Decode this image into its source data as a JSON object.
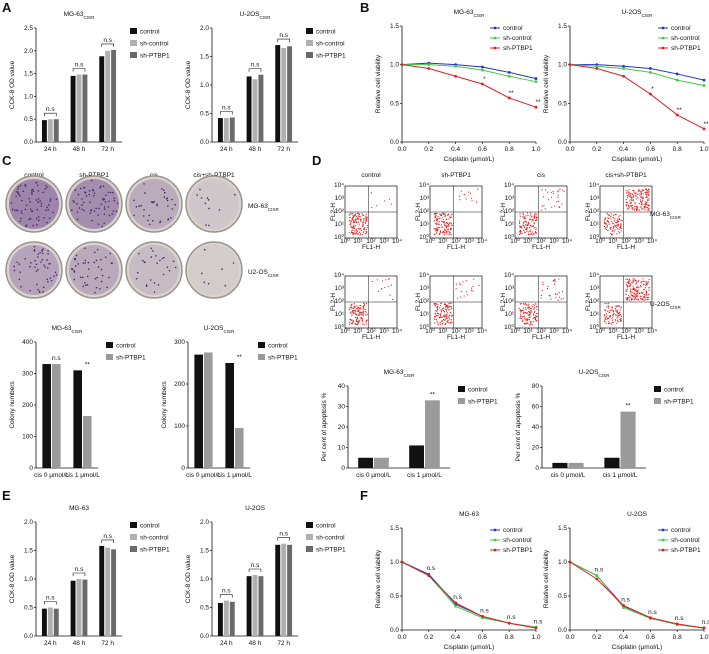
{
  "panel_letters": [
    "A",
    "B",
    "C",
    "D",
    "E",
    "F"
  ],
  "colony_images": {
    "columns": [
      "control",
      "sh-PTBP1",
      "cis",
      "cis+sh-PTBP1"
    ],
    "rows": [
      {
        "name": "MG-63",
        "sub": "CISR"
      },
      {
        "name": "U2-OS",
        "sub": "CISR"
      }
    ]
  },
  "flow_plots": {
    "columns": [
      "control",
      "sh-PTBP1",
      "cis",
      "cis+sh-PTBP1"
    ],
    "rows": [
      {
        "name": "MG-63",
        "sub": "CISR"
      },
      {
        "name": "U-2OS",
        "sub": "CISR"
      }
    ],
    "xlabel": "FL1-H",
    "ylabel": "FL2-H",
    "ticks": [
      "10⁰",
      "10¹",
      "10²",
      "10³",
      "10⁴"
    ]
  },
  "chart_data": [
    {
      "type": "bar",
      "title": "MG-63",
      "title_sub": "CISR",
      "ylabel": "CCK-8 OD value",
      "categories": [
        "24 h",
        "48 h",
        "72 h"
      ],
      "ylim": [
        0,
        2.5
      ],
      "yticks": [
        {
          "value": 0,
          "label": "0.0"
        },
        0.5,
        {
          "value": 1,
          "label": "1.0"
        },
        1.5,
        {
          "value": 2,
          "label": "2.0"
        },
        2.5
      ],
      "legend": "right",
      "brackets": true,
      "annotations": [
        "n.s",
        "n.s",
        "n.s"
      ],
      "series": [
        {
          "name": "control",
          "color": "#111111",
          "values": [
            0.48,
            1.45,
            1.88
          ]
        },
        {
          "name": "sh-control",
          "color": "#b0b0b0",
          "values": [
            0.5,
            1.48,
            2.0
          ]
        },
        {
          "name": "sh-PTBP1",
          "color": "#6a6a6a",
          "values": [
            0.5,
            1.48,
            2.02
          ]
        }
      ]
    },
    {
      "type": "bar",
      "title": "U-2OS",
      "title_sub": "CISR",
      "ylabel": "CCK-8 OD value",
      "categories": [
        "24 h",
        "48 h",
        "72 h"
      ],
      "ylim": [
        0,
        2
      ],
      "yticks": [
        {
          "value": 0,
          "label": "0.0"
        },
        0.5,
        {
          "value": 1,
          "label": "1.0"
        },
        1.5,
        {
          "value": 2,
          "label": "2.0"
        }
      ],
      "legend": "right",
      "brackets": true,
      "annotations": [
        "n.s",
        "n.s",
        "n.s"
      ],
      "series": [
        {
          "name": "control",
          "color": "#111111",
          "values": [
            0.42,
            1.15,
            1.7
          ]
        },
        {
          "name": "sh-control",
          "color": "#b0b0b0",
          "values": [
            0.42,
            1.1,
            1.65
          ]
        },
        {
          "name": "sh-PTBP1",
          "color": "#6a6a6a",
          "values": [
            0.43,
            1.18,
            1.68
          ]
        }
      ]
    },
    {
      "type": "line",
      "title": "MG-63",
      "title_sub": "CISR",
      "ylabel": "Relative cell viability",
      "xlabel": "Cisplatin (μmol/L)",
      "x": [
        0,
        0.2,
        0.4,
        0.6,
        0.8,
        1
      ],
      "xlim": [
        0,
        1
      ],
      "xticks": [
        {
          "value": 0,
          "label": "0.0"
        },
        0.2,
        0.4,
        0.6,
        0.8,
        {
          "value": 1,
          "label": "1.0"
        }
      ],
      "ylim": [
        0,
        1.5
      ],
      "yticks": [
        {
          "value": 0,
          "label": "0.0"
        },
        0.5,
        {
          "value": 1,
          "label": "1.0"
        },
        1.5
      ],
      "legend": "upper right",
      "annotations": [
        null,
        null,
        null,
        "*",
        "**",
        "**"
      ],
      "series": [
        {
          "name": "control",
          "color": "#2233cc",
          "values": [
            1,
            1.02,
            1,
            0.97,
            0.9,
            0.82
          ]
        },
        {
          "name": "sh-control",
          "color": "#44cc44",
          "values": [
            1,
            1,
            0.98,
            0.93,
            0.85,
            0.78
          ]
        },
        {
          "name": "sh-PTBP1",
          "color": "#dd2222",
          "values": [
            1,
            0.95,
            0.85,
            0.75,
            0.57,
            0.45
          ]
        }
      ]
    },
    {
      "type": "line",
      "title": "U-2OS",
      "title_sub": "CISR",
      "ylabel": "Relative cell viability",
      "xlabel": "Cisplatin (μmol/L)",
      "x": [
        0,
        0.2,
        0.4,
        0.6,
        0.8,
        1
      ],
      "xlim": [
        0,
        1
      ],
      "xticks": [
        {
          "value": 0,
          "label": "0.0"
        },
        0.2,
        0.4,
        0.6,
        0.8,
        {
          "value": 1,
          "label": "1.0"
        }
      ],
      "ylim": [
        0,
        1.5
      ],
      "yticks": [
        {
          "value": 0,
          "label": "0.0"
        },
        0.5,
        {
          "value": 1,
          "label": "1.0"
        },
        1.5
      ],
      "legend": "upper right",
      "annotations": [
        null,
        null,
        null,
        "*",
        "**",
        "**"
      ],
      "series": [
        {
          "name": "control",
          "color": "#2233cc",
          "values": [
            1,
            1,
            0.98,
            0.95,
            0.88,
            0.8
          ]
        },
        {
          "name": "sh-control",
          "color": "#44cc44",
          "values": [
            1,
            0.98,
            0.95,
            0.9,
            0.8,
            0.73
          ]
        },
        {
          "name": "sh-PTBP1",
          "color": "#dd2222",
          "values": [
            1,
            0.95,
            0.85,
            0.62,
            0.35,
            0.17
          ]
        }
      ]
    },
    {
      "type": "bar",
      "title": "MG-63",
      "title_sub": "CISR",
      "ylabel": "Colony numbers",
      "categories": [
        "cis 0 μmol/L",
        "cis 1 μmol/L"
      ],
      "ylim": [
        0,
        400
      ],
      "yticks": [
        0,
        100,
        200,
        300,
        400
      ],
      "legend": "right",
      "annotations": [
        "n.s",
        "**"
      ],
      "series": [
        {
          "name": "control",
          "color": "#111111",
          "values": [
            330,
            310
          ]
        },
        {
          "name": "sh-PTBP1",
          "color": "#9a9a9a",
          "values": [
            330,
            165
          ]
        }
      ]
    },
    {
      "type": "bar",
      "title": "U-2OS",
      "title_sub": "CISR",
      "ylabel": "Colony numbers",
      "categories": [
        "cis 0 μmol/L",
        "cis 1 μmol/L"
      ],
      "ylim": [
        0,
        300
      ],
      "yticks": [
        0,
        100,
        200,
        300
      ],
      "legend": "right",
      "annotations": [
        null,
        "**"
      ],
      "series": [
        {
          "name": "control",
          "color": "#111111",
          "values": [
            270,
            250
          ]
        },
        {
          "name": "sh-PTBP1",
          "color": "#9a9a9a",
          "values": [
            275,
            95
          ]
        }
      ]
    },
    {
      "type": "bar",
      "title": "MG-63",
      "title_sub": "CISR",
      "ylabel": "Per cent of apoptosis %",
      "categories": [
        "cis 0 μmol/L",
        "cis 1 μmol/L"
      ],
      "ylim": [
        0,
        40
      ],
      "yticks": [
        0,
        10,
        20,
        30,
        40
      ],
      "legend": "right",
      "annotations": [
        null,
        "**"
      ],
      "series": [
        {
          "name": "control",
          "color": "#111111",
          "values": [
            5,
            11
          ]
        },
        {
          "name": "sh-PTBP1",
          "color": "#9a9a9a",
          "values": [
            5,
            33
          ]
        }
      ]
    },
    {
      "type": "bar",
      "title": "U-2OS",
      "title_sub": "CISR",
      "ylabel": "Per cent of apoptosis %",
      "categories": [
        "cis 0 μmol/L",
        "cis 1 μmol/L"
      ],
      "ylim": [
        0,
        80
      ],
      "yticks": [
        0,
        20,
        40,
        60,
        80
      ],
      "legend": "right",
      "annotations": [
        null,
        "**"
      ],
      "series": [
        {
          "name": "control",
          "color": "#111111",
          "values": [
            5,
            10
          ]
        },
        {
          "name": "sh-PTBP1",
          "color": "#9a9a9a",
          "values": [
            5,
            55
          ]
        }
      ]
    },
    {
      "type": "bar",
      "title": "MG-63",
      "ylabel": "CCK-8 OD value",
      "categories": [
        "24 h",
        "48 h",
        "72 h"
      ],
      "ylim": [
        0,
        2
      ],
      "yticks": [
        {
          "value": 0,
          "label": "0.0"
        },
        0.5,
        {
          "value": 1,
          "label": "1.0"
        },
        1.5,
        {
          "value": 2,
          "label": "2.0"
        }
      ],
      "legend": "right",
      "brackets": true,
      "annotations": [
        "n.s",
        "n.s",
        "n.s"
      ],
      "series": [
        {
          "name": "control",
          "color": "#111111",
          "values": [
            0.48,
            0.97,
            1.58
          ]
        },
        {
          "name": "sh-control",
          "color": "#b0b0b0",
          "values": [
            0.5,
            1.0,
            1.55
          ]
        },
        {
          "name": "sh-PTBP1",
          "color": "#6a6a6a",
          "values": [
            0.48,
            0.99,
            1.52
          ]
        }
      ]
    },
    {
      "type": "bar",
      "title": "U-2OS",
      "ylabel": "CCK-8 OD value",
      "categories": [
        "24 h",
        "48 h",
        "72 h"
      ],
      "ylim": [
        0,
        2
      ],
      "yticks": [
        {
          "value": 0,
          "label": "0.0"
        },
        0.5,
        {
          "value": 1,
          "label": "1.0"
        },
        1.5,
        {
          "value": 2,
          "label": "2.0"
        }
      ],
      "legend": "right",
      "brackets": true,
      "annotations": [
        "n.s",
        "n.s",
        "n.s"
      ],
      "series": [
        {
          "name": "control",
          "color": "#111111",
          "values": [
            0.58,
            1.05,
            1.6
          ]
        },
        {
          "name": "sh-control",
          "color": "#b0b0b0",
          "values": [
            0.62,
            1.07,
            1.62
          ]
        },
        {
          "name": "sh-PTBP1",
          "color": "#6a6a6a",
          "values": [
            0.6,
            1.05,
            1.6
          ]
        }
      ]
    },
    {
      "type": "line",
      "title": "MG-63",
      "ylabel": "Relative cell viability",
      "xlabel": "Cisplatin (μmol/L)",
      "x": [
        0,
        0.2,
        0.4,
        0.6,
        0.8,
        1
      ],
      "xlim": [
        0,
        1
      ],
      "xticks": [
        {
          "value": 0,
          "label": "0.0"
        },
        0.2,
        0.4,
        0.6,
        0.8,
        {
          "value": 1,
          "label": "1.0"
        }
      ],
      "ylim": [
        0,
        1.5
      ],
      "yticks": [
        {
          "value": 0,
          "label": "0.0"
        },
        0.5,
        {
          "value": 1,
          "label": "1.0"
        },
        1.5
      ],
      "legend": "upper right",
      "annotations": [
        null,
        "n.s",
        "n.s",
        "n.s",
        "n.s",
        "n.s"
      ],
      "series": [
        {
          "name": "control",
          "color": "#2233cc",
          "values": [
            1,
            0.82,
            0.38,
            0.2,
            0.1,
            0.04
          ]
        },
        {
          "name": "sh-control",
          "color": "#44cc44",
          "values": [
            1,
            0.8,
            0.35,
            0.18,
            0.1,
            0.04
          ]
        },
        {
          "name": "sh-PTBP1",
          "color": "#dd2222",
          "values": [
            1,
            0.8,
            0.4,
            0.2,
            0.1,
            0.03
          ]
        }
      ]
    },
    {
      "type": "line",
      "title": "U-2OS",
      "ylabel": "Relative cell viability",
      "xlabel": "Cisplatin (μmol/L)",
      "x": [
        0,
        0.2,
        0.4,
        0.6,
        0.8,
        1
      ],
      "xlim": [
        0,
        1
      ],
      "xticks": [
        {
          "value": 0,
          "label": "0.0"
        },
        0.2,
        0.4,
        0.6,
        0.8,
        {
          "value": 1,
          "label": "1.0"
        }
      ],
      "ylim": [
        0,
        1.5
      ],
      "yticks": [
        {
          "value": 0,
          "label": "0.0"
        },
        0.5,
        {
          "value": 1,
          "label": "1.0"
        },
        1.5
      ],
      "legend": "upper right",
      "annotations": [
        null,
        "n.s",
        "n.s",
        "n.s",
        "n.s",
        "n.s"
      ],
      "series": [
        {
          "name": "control",
          "color": "#2233cc",
          "values": [
            1,
            0.8,
            0.35,
            0.18,
            0.08,
            0.03
          ]
        },
        {
          "name": "sh-control",
          "color": "#44cc44",
          "values": [
            1,
            0.8,
            0.33,
            0.17,
            0.08,
            0.03
          ]
        },
        {
          "name": "sh-PTBP1",
          "color": "#dd2222",
          "values": [
            1,
            0.75,
            0.36,
            0.18,
            0.09,
            0.03
          ]
        }
      ]
    }
  ]
}
